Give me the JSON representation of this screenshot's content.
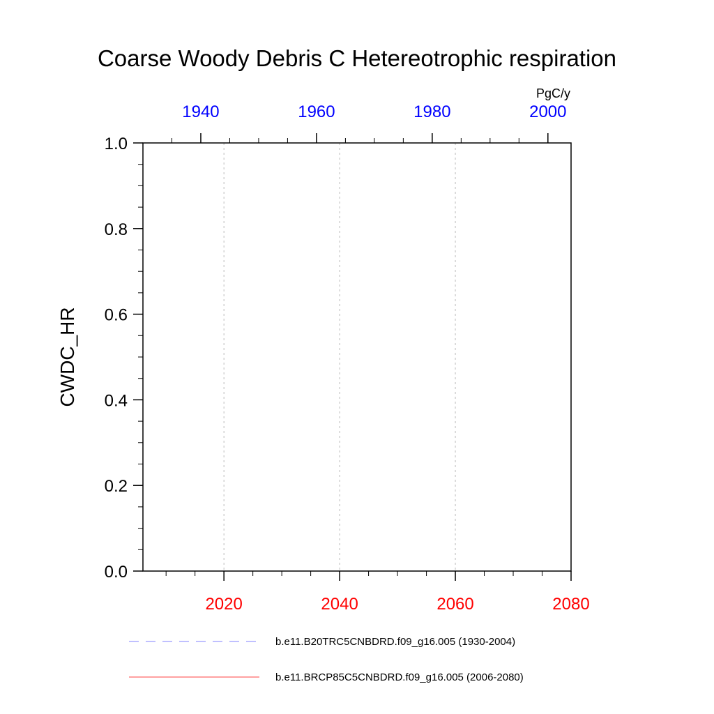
{
  "chart_data": {
    "type": "line",
    "title": "Coarse Woody Debris C Hetereotrophic respiration",
    "ylabel": "CWDC_HR",
    "units": "PgC/y",
    "ylim": [
      0.0,
      1.0
    ],
    "y_ticks": [
      "0.0",
      "0.2",
      "0.4",
      "0.6",
      "0.8",
      "1.0"
    ],
    "x_bottom": {
      "range": [
        2006,
        2080
      ],
      "ticks": [
        "2020",
        "2040",
        "2060",
        "2080"
      ],
      "color": "#ff0000"
    },
    "x_top": {
      "range": [
        1930,
        2004
      ],
      "ticks": [
        "1940",
        "1960",
        "1980",
        "2000"
      ],
      "color": "#0000ff"
    },
    "grid": "vertical dotted at major bottom ticks",
    "series": [
      {
        "name": "b.e11.B20TRC5CNBDRD.f09_g16.005 (1930-2004)",
        "color": "#8080ff",
        "style": "dashed",
        "axis": "top",
        "x": [
          1930,
          2004
        ],
        "y": [
          0.0,
          0.0
        ]
      },
      {
        "name": "b.e11.BRCP85C5CNBDRD.f09_g16.005 (2006-2080)",
        "color": "#ff4040",
        "style": "solid",
        "axis": "bottom",
        "x": [
          2006,
          2080
        ],
        "y": [
          0.0,
          0.0
        ]
      }
    ],
    "legend_position": "bottom"
  }
}
